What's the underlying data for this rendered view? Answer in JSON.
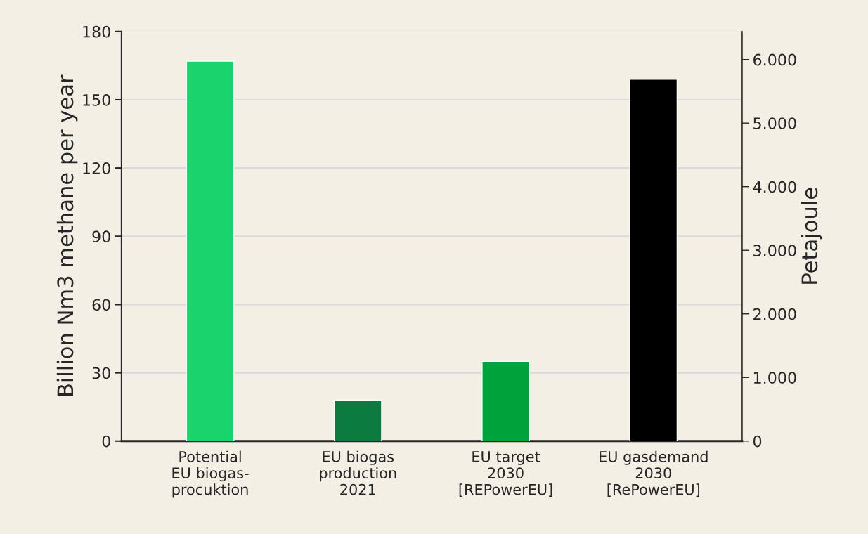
{
  "chart_data": {
    "type": "bar",
    "categories": [
      "Potential\nEU biogas-\nprocuktion",
      "EU biogas\nproduction\n2021",
      "EU target\n2030\n[REPowerEU]",
      "EU gasdemand\n2030\n[RePowerEU]"
    ],
    "values": [
      167,
      18,
      35,
      159
    ],
    "colors": [
      "#1ad36c",
      "#0c7b40",
      "#00a23b",
      "#000000"
    ],
    "ylabel": "Billion Nm3 methane per year",
    "y2label": "Petajoule",
    "ylim": [
      0,
      180
    ],
    "yticks": [
      0,
      30,
      60,
      90,
      120,
      150,
      180
    ],
    "y2lim": [
      0,
      6440
    ],
    "y2ticks": [
      0,
      {
        "value": 1000,
        "label": "1.000"
      },
      {
        "value": 2000,
        "label": "2.000"
      },
      {
        "value": 3000,
        "label": "3.000"
      },
      {
        "value": 4000,
        "label": "4.000"
      },
      {
        "value": 5000,
        "label": "5.000"
      },
      {
        "value": 6000,
        "label": "6.000"
      }
    ],
    "grid": "y"
  }
}
